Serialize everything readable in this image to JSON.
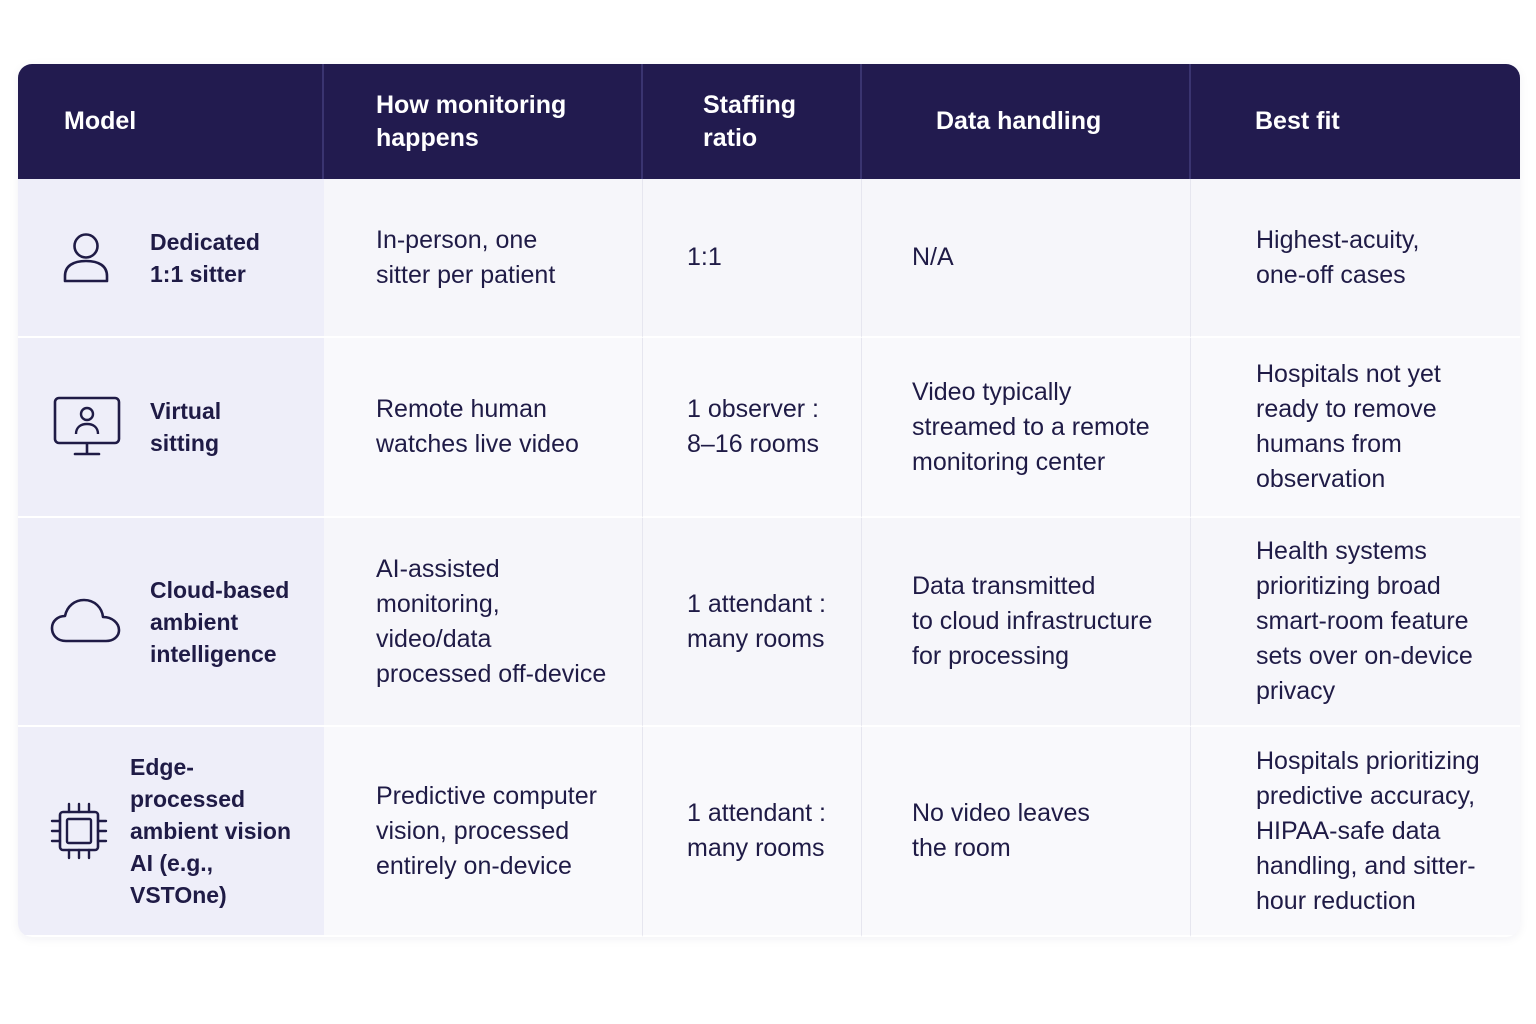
{
  "headers": {
    "model": "Model",
    "how": "How monitoring\nhappens",
    "staffing": "Staffing\nratio",
    "data": "Data handling",
    "fit": "Best fit"
  },
  "rows": [
    {
      "icon": "person-icon",
      "model": "Dedicated\n1:1 sitter",
      "how": "In-person, one\nsitter per patient",
      "staffing": "1:1",
      "data": "N/A",
      "fit": "Highest-acuity,\none-off cases"
    },
    {
      "icon": "monitor-person-icon",
      "model": "Virtual\nsitting",
      "how": "Remote human\nwatches live video",
      "staffing": "1 observer :\n8–16 rooms",
      "data": "Video typically\nstreamed to a remote\nmonitoring center",
      "fit": "Hospitals not yet\nready to remove\nhumans from\nobservation"
    },
    {
      "icon": "cloud-icon",
      "model": "Cloud-based\nambient\nintelligence",
      "how": "AI-assisted\nmonitoring,\nvideo/data\nprocessed off-device",
      "staffing": "1 attendant :\nmany rooms",
      "data": "Data transmitted\nto cloud infrastructure\nfor processing",
      "fit": "Health systems\nprioritizing broad\nsmart-room feature\nsets over on-device\nprivacy"
    },
    {
      "icon": "chip-icon",
      "model": "Edge-processed\nambient vision\nAI (e.g., VSTOne)",
      "how": "Predictive computer\nvision, processed\nentirely on-device",
      "staffing": "1 attendant :\nmany rooms",
      "data": "No video leaves\nthe room",
      "fit": "Hospitals prioritizing\npredictive accuracy,\nHIPAA-safe data\nhandling, and sitter-\nhour reduction"
    }
  ],
  "colors": {
    "header_bg": "#221b4f",
    "header_text": "#ffffff",
    "model_bg": "#eeeef9",
    "body_bg": "#f6f6fa",
    "text": "#1f1b46"
  }
}
